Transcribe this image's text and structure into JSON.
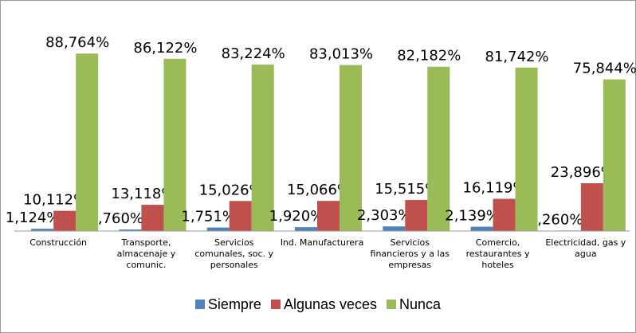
{
  "chart_data": {
    "type": "bar",
    "categories": [
      "Construcción",
      "Transporte, almacenaje y comunic.",
      "Servicios comunales, soc. y personales",
      "Ind. Manufacturera",
      "Servicios financieros y a las empresas",
      "Comercio, restaurantes y hoteles",
      "Electricidad, gas y agua"
    ],
    "series": [
      {
        "name": "Siempre",
        "color": "#4f81bd",
        "values": [
          1.124,
          0.76,
          1.751,
          1.92,
          2.303,
          2.139,
          0.26
        ],
        "value_labels": [
          "1,124%",
          ",760%",
          "1,751%",
          "1,920%",
          "2,303%",
          "2,139%",
          ",260%"
        ]
      },
      {
        "name": "Algunas veces",
        "color": "#c0504d",
        "values": [
          10.112,
          13.118,
          15.026,
          15.066,
          15.515,
          16.119,
          23.896
        ],
        "value_labels": [
          "10,112%",
          "13,118%",
          "15,026%",
          "15,066%",
          "15,515%",
          "16,119%",
          "23,896%"
        ]
      },
      {
        "name": "Nunca",
        "color": "#9bbb59",
        "values": [
          88.764,
          86.122,
          83.224,
          83.013,
          82.182,
          81.742,
          75.844
        ],
        "value_labels": [
          "88,764%",
          "86,122%",
          "83,224%",
          "83,013%",
          "82,182%",
          "81,742%",
          "75,844%"
        ]
      }
    ],
    "ylim": [
      0,
      100
    ]
  }
}
